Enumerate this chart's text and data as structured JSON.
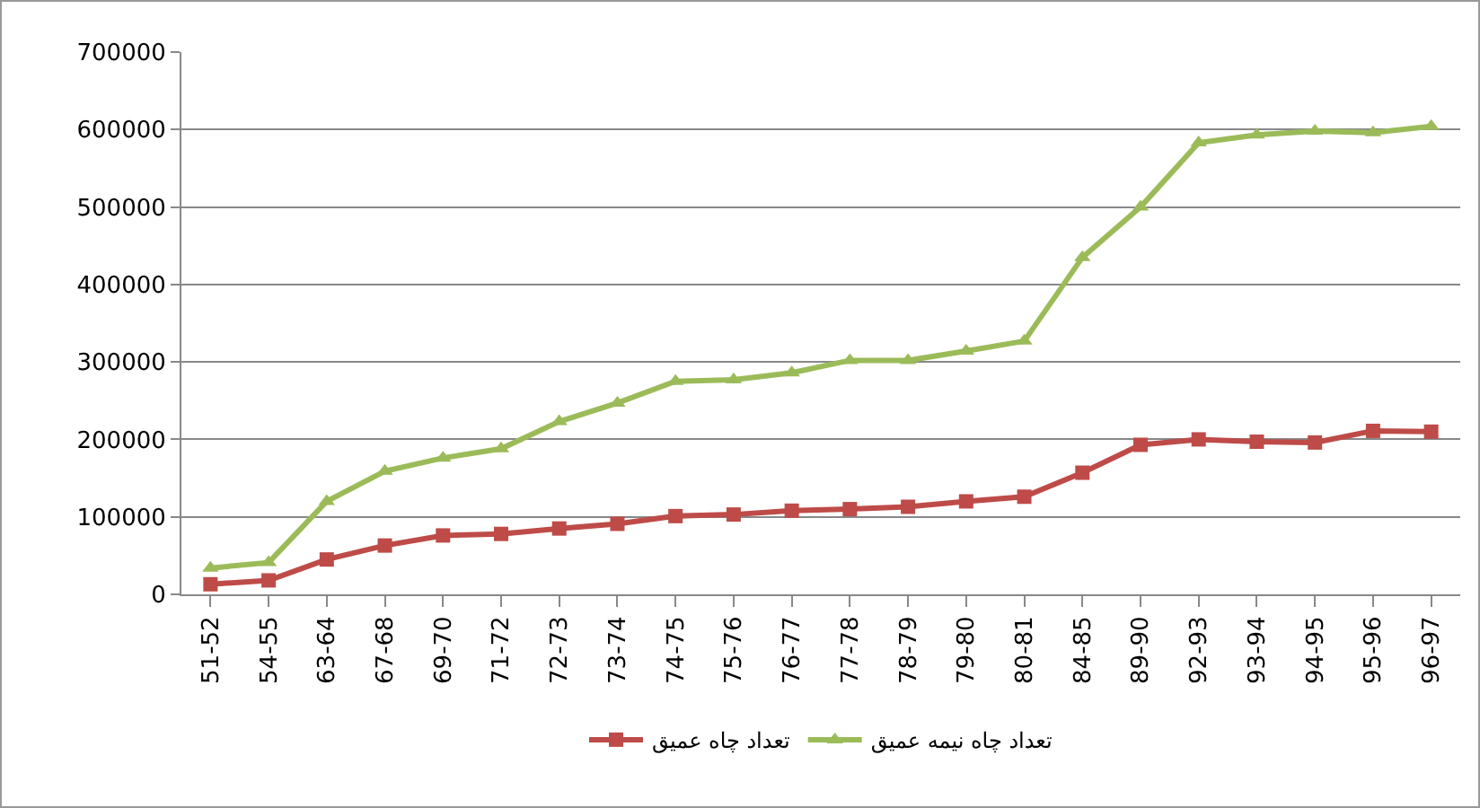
{
  "chart_data": {
    "type": "line",
    "categories": [
      "51-52",
      "54-55",
      "63-64",
      "67-68",
      "69-70",
      "71-72",
      "72-73",
      "73-74",
      "74-75",
      "75-76",
      "76-77",
      "77-78",
      "78-79",
      "79-80",
      "80-81",
      "84-85",
      "89-90",
      "92-93",
      "93-94",
      "94-95",
      "95-96",
      "96-97"
    ],
    "series": [
      {
        "name": "تعداد چاه عمیق",
        "color": "#be4b48",
        "marker": "square",
        "values": [
          13000,
          18000,
          45000,
          63000,
          76000,
          78000,
          85000,
          91000,
          101000,
          103000,
          108000,
          110000,
          113000,
          120000,
          126000,
          157000,
          193000,
          200000,
          197000,
          196000,
          211000,
          210000
        ]
      },
      {
        "name": "تعداد چاه نیمه عمیق",
        "color": "#9bbb59",
        "marker": "triangle",
        "values": [
          34000,
          41000,
          120000,
          159000,
          176000,
          188000,
          223000,
          247000,
          275000,
          277000,
          286000,
          302000,
          302000,
          314000,
          327000,
          435000,
          500000,
          583000,
          593000,
          598000,
          596000,
          604000
        ]
      }
    ],
    "ylim": [
      0,
      700000
    ],
    "yticks": [
      0,
      100000,
      200000,
      300000,
      400000,
      500000,
      600000,
      700000
    ],
    "grid": "y",
    "legend": "bottom",
    "line_style": "solid"
  }
}
